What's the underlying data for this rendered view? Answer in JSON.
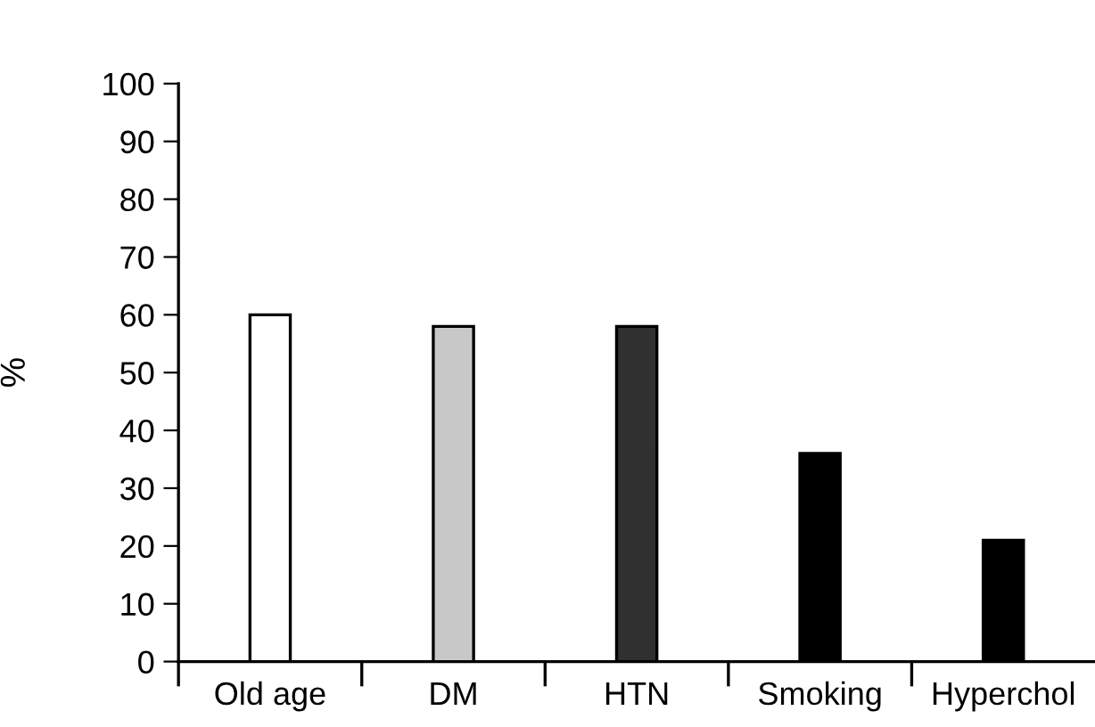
{
  "chart_data": {
    "type": "bar",
    "ylabel": "%",
    "categories": [
      "Old age",
      "DM",
      "HTN",
      "Smoking",
      "Hyperchol"
    ],
    "values": [
      60,
      58,
      58,
      36,
      21
    ],
    "colors": [
      "#ffffff",
      "#c8c8c8",
      "#303030",
      "#000000",
      "#000000"
    ],
    "ylim": [
      0,
      100
    ],
    "yticks": [
      0,
      10,
      20,
      30,
      40,
      50,
      60,
      70,
      80,
      90,
      100
    ],
    "grid": false,
    "legend": false
  }
}
